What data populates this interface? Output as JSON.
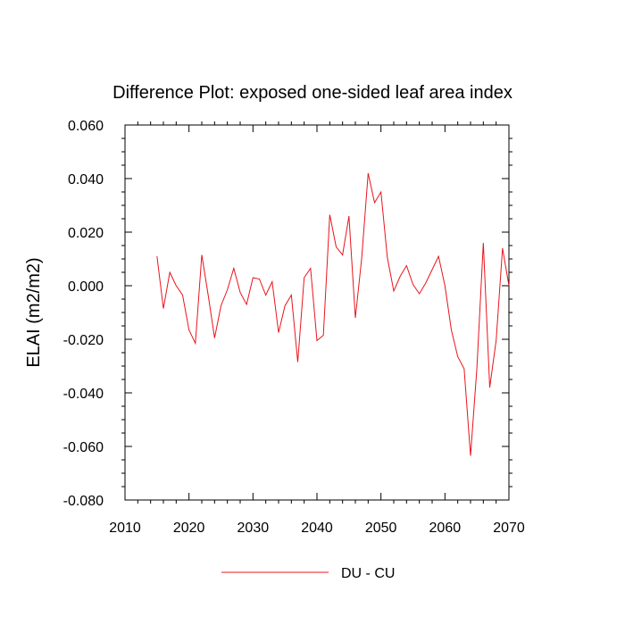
{
  "chart_data": {
    "type": "line",
    "title": "Difference Plot: exposed one-sided leaf area index",
    "xlabel": "",
    "ylabel": "ELAI  (m2/m2)",
    "xlim": [
      2010,
      2070
    ],
    "ylim": [
      -0.08,
      0.06
    ],
    "x_ticks": [
      2010,
      2020,
      2030,
      2040,
      2050,
      2060,
      2070
    ],
    "x_tick_labels": [
      "2010",
      "2020",
      "2030",
      "2040",
      "2050",
      "2060",
      "2070"
    ],
    "y_ticks": [
      -0.08,
      -0.06,
      -0.04,
      -0.02,
      0.0,
      0.02,
      0.04,
      0.06
    ],
    "y_tick_labels": [
      "-0.080",
      "-0.060",
      "-0.040",
      "-0.020",
      "0.000",
      "0.020",
      "0.040",
      "0.060"
    ],
    "grid": false,
    "legend_position": "bottom-center",
    "series": [
      {
        "name": "DU - CU",
        "color": "#e8141c",
        "x": [
          2015,
          2016,
          2017,
          2018,
          2019,
          2020,
          2021,
          2022,
          2023,
          2024,
          2025,
          2026,
          2027,
          2028,
          2029,
          2030,
          2031,
          2032,
          2033,
          2034,
          2035,
          2036,
          2037,
          2038,
          2039,
          2040,
          2041,
          2042,
          2043,
          2044,
          2045,
          2046,
          2047,
          2048,
          2049,
          2050,
          2051,
          2052,
          2053,
          2054,
          2055,
          2056,
          2057,
          2058,
          2059,
          2060,
          2061,
          2062,
          2063,
          2064,
          2065,
          2066,
          2067,
          2068,
          2069,
          2070
        ],
        "values": [
          0.011,
          -0.0085,
          0.005,
          0.0,
          -0.0035,
          -0.0165,
          -0.0215,
          0.0115,
          -0.0035,
          -0.0195,
          -0.0075,
          -0.0015,
          0.0065,
          -0.0025,
          -0.007,
          0.003,
          0.0025,
          -0.0035,
          0.0015,
          -0.0175,
          -0.0075,
          -0.0035,
          -0.0285,
          0.003,
          0.0065,
          -0.0205,
          -0.0185,
          0.0265,
          0.0145,
          0.0115,
          0.026,
          -0.012,
          0.0105,
          0.042,
          0.031,
          0.035,
          0.0105,
          -0.002,
          0.0035,
          0.0075,
          0.0005,
          -0.003,
          0.001,
          0.006,
          0.011,
          0.0,
          -0.0165,
          -0.0265,
          -0.031,
          -0.0635,
          -0.0305,
          0.016,
          -0.038,
          -0.0205,
          0.014,
          0.0
        ]
      }
    ]
  }
}
